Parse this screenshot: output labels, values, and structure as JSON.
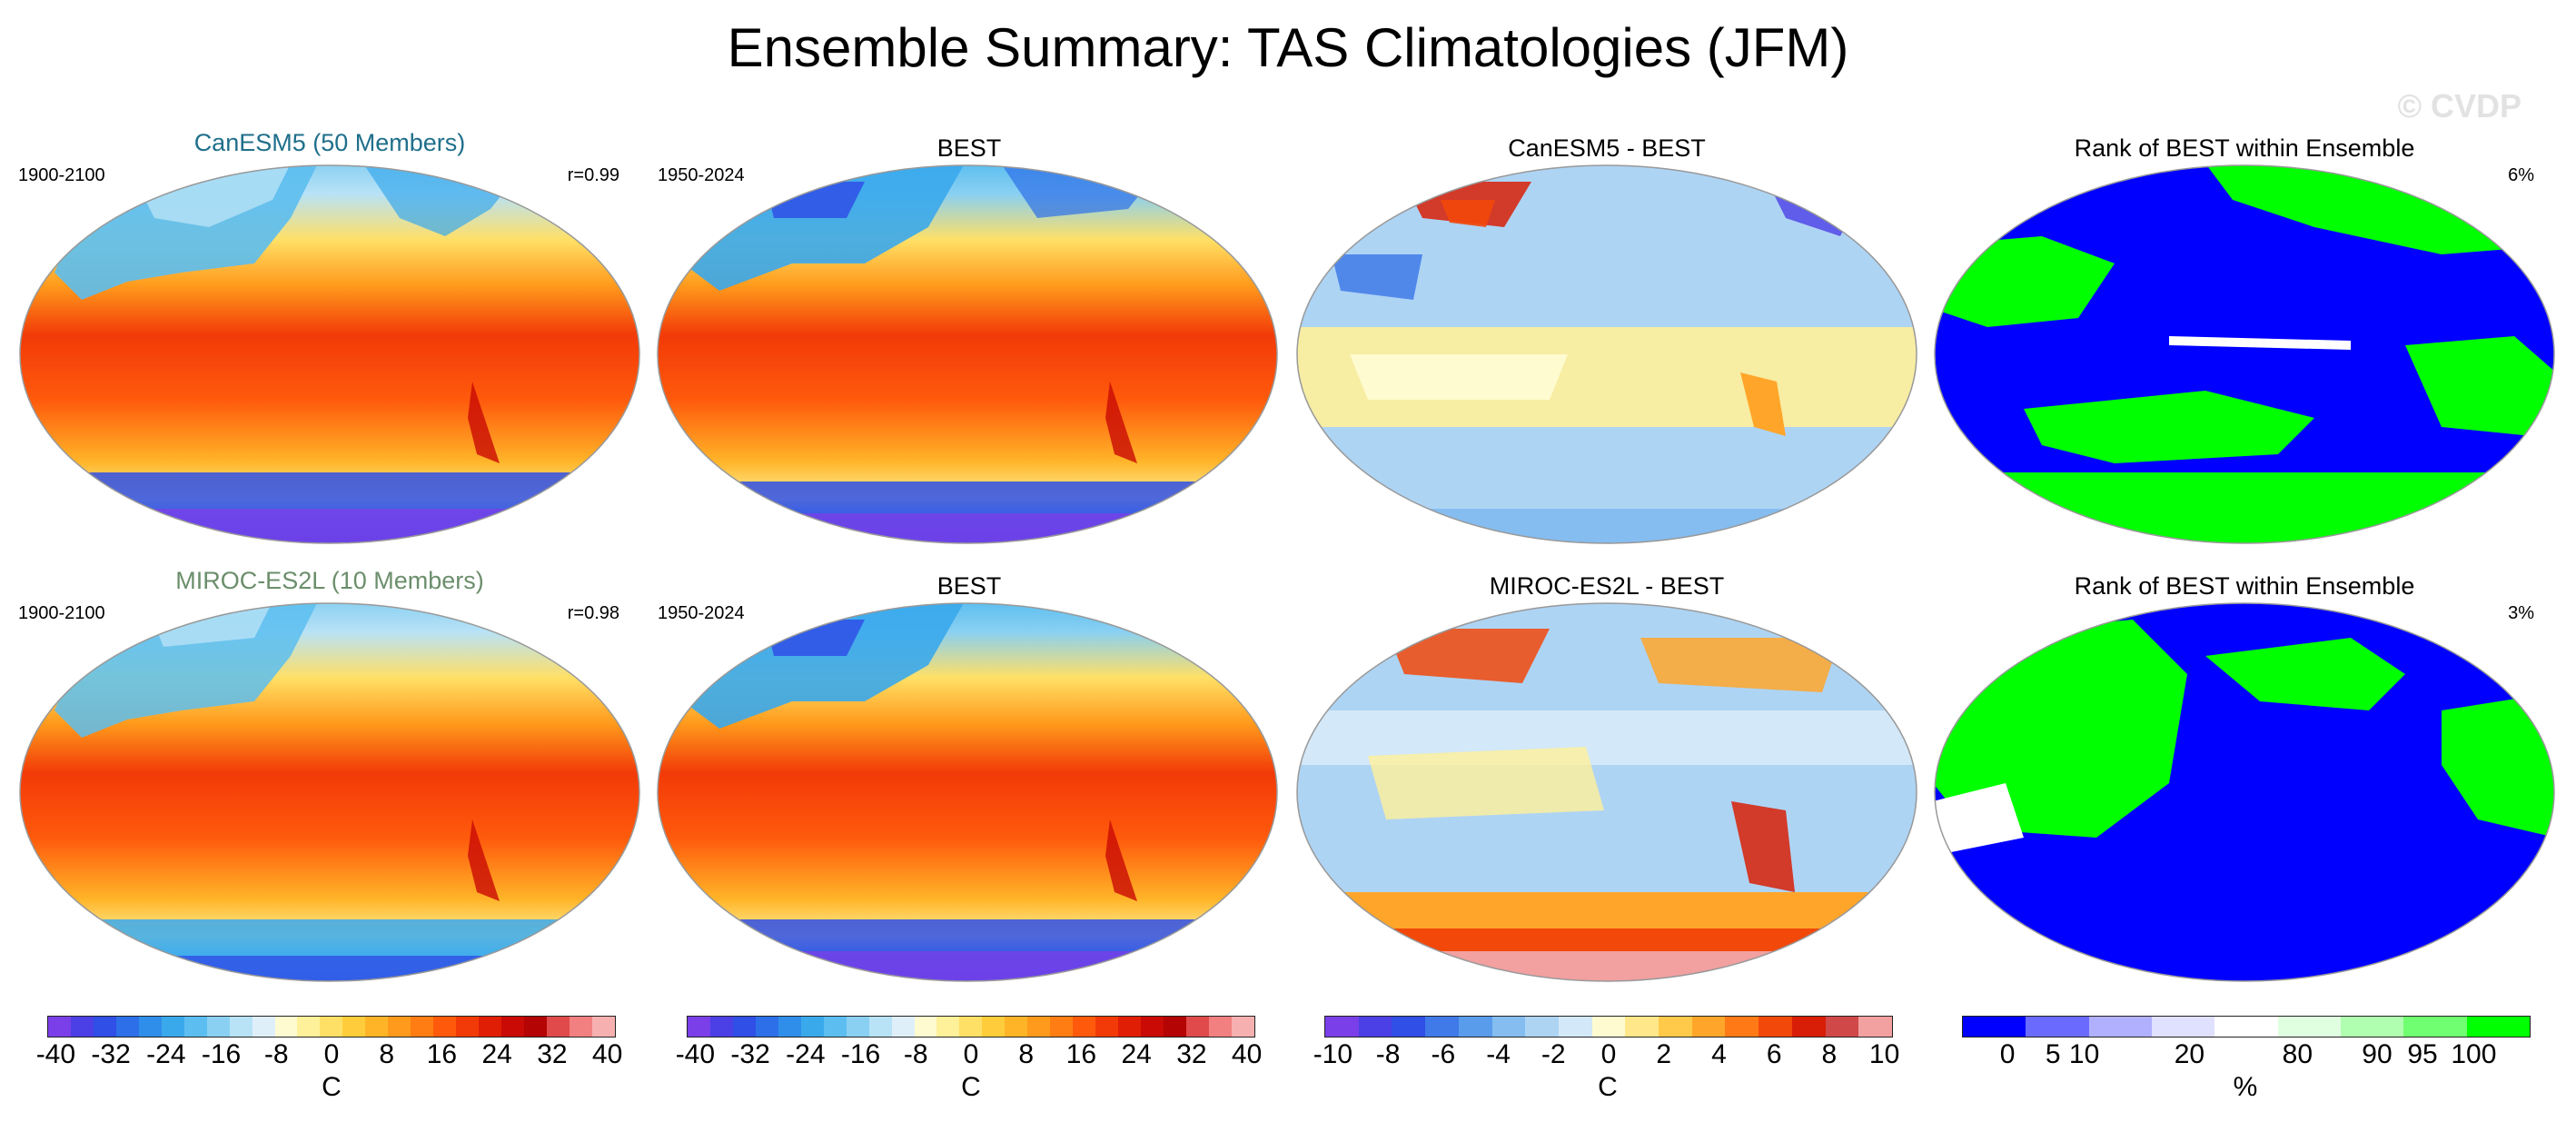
{
  "title": "Ensemble Summary: TAS Climatologies (JFM)",
  "watermark": "© CVDP",
  "rows": [
    {
      "model": "CanESM5 (50 Members)",
      "model_color": "#1f6f8b",
      "model_period": "1900-2100",
      "correlation": "r=0.99",
      "obs": "BEST",
      "obs_period": "1950-2024",
      "difference": "CanESM5 - BEST",
      "rank": "Rank of BEST within Ensemble",
      "rank_pct": "6%"
    },
    {
      "model": "MIROC-ES2L (10 Members)",
      "model_color": "#6b8e6b",
      "model_period": "1900-2100",
      "correlation": "r=0.98",
      "obs": "BEST",
      "obs_period": "1950-2024",
      "difference": "MIROC-ES2L - BEST",
      "rank": "Rank of BEST within Ensemble",
      "rank_pct": "3%"
    }
  ],
  "colorbars": [
    {
      "unit": "C",
      "ticks": [
        "-40",
        "-32",
        "-24",
        "-16",
        "-8",
        "0",
        "8",
        "16",
        "24",
        "32",
        "40"
      ]
    },
    {
      "unit": "C",
      "ticks": [
        "-40",
        "-32",
        "-24",
        "-16",
        "-8",
        "0",
        "8",
        "16",
        "24",
        "32",
        "40"
      ]
    },
    {
      "unit": "C",
      "ticks": [
        "-10",
        "-8",
        "-6",
        "-4",
        "-2",
        "0",
        "2",
        "4",
        "6",
        "8",
        "10"
      ]
    },
    {
      "unit": "%",
      "ticks": [
        "0",
        "5",
        "10",
        "20",
        "80",
        "90",
        "95",
        "100"
      ]
    }
  ],
  "colors": {
    "temp_scale": [
      "#7a3fe8",
      "#4b3fe6",
      "#2f4fe6",
      "#2d6fe8",
      "#2f8eea",
      "#3aa9ec",
      "#5cbef0",
      "#8ad0f2",
      "#b8e2f6",
      "#dfeffa",
      "#fffbd0",
      "#fff09a",
      "#ffe066",
      "#ffcd3c",
      "#ffb428",
      "#ff9a1c",
      "#ff7d12",
      "#ff5a0c",
      "#f23a08",
      "#e01e06",
      "#c90a05",
      "#b40404",
      "#e04a4a",
      "#f28080",
      "#f7b0b0"
    ],
    "diff_scale": [
      "#7a3fe8",
      "#4b3fe6",
      "#2f4fe6",
      "#3f7ae8",
      "#5a9cec",
      "#85bdf0",
      "#aed4f4",
      "#d3e8f8",
      "#fffbd0",
      "#ffe78a",
      "#ffc94a",
      "#ffa62a",
      "#ff7a16",
      "#f2480a",
      "#d81e06",
      "#d04848",
      "#f2a0a0"
    ],
    "rank_scale": [
      "#0000ff",
      "#6a6aff",
      "#b0b0ff",
      "#e0e0ff",
      "#ffffff",
      "#e0ffe0",
      "#b0ffb0",
      "#70ff70",
      "#00ff00"
    ]
  }
}
